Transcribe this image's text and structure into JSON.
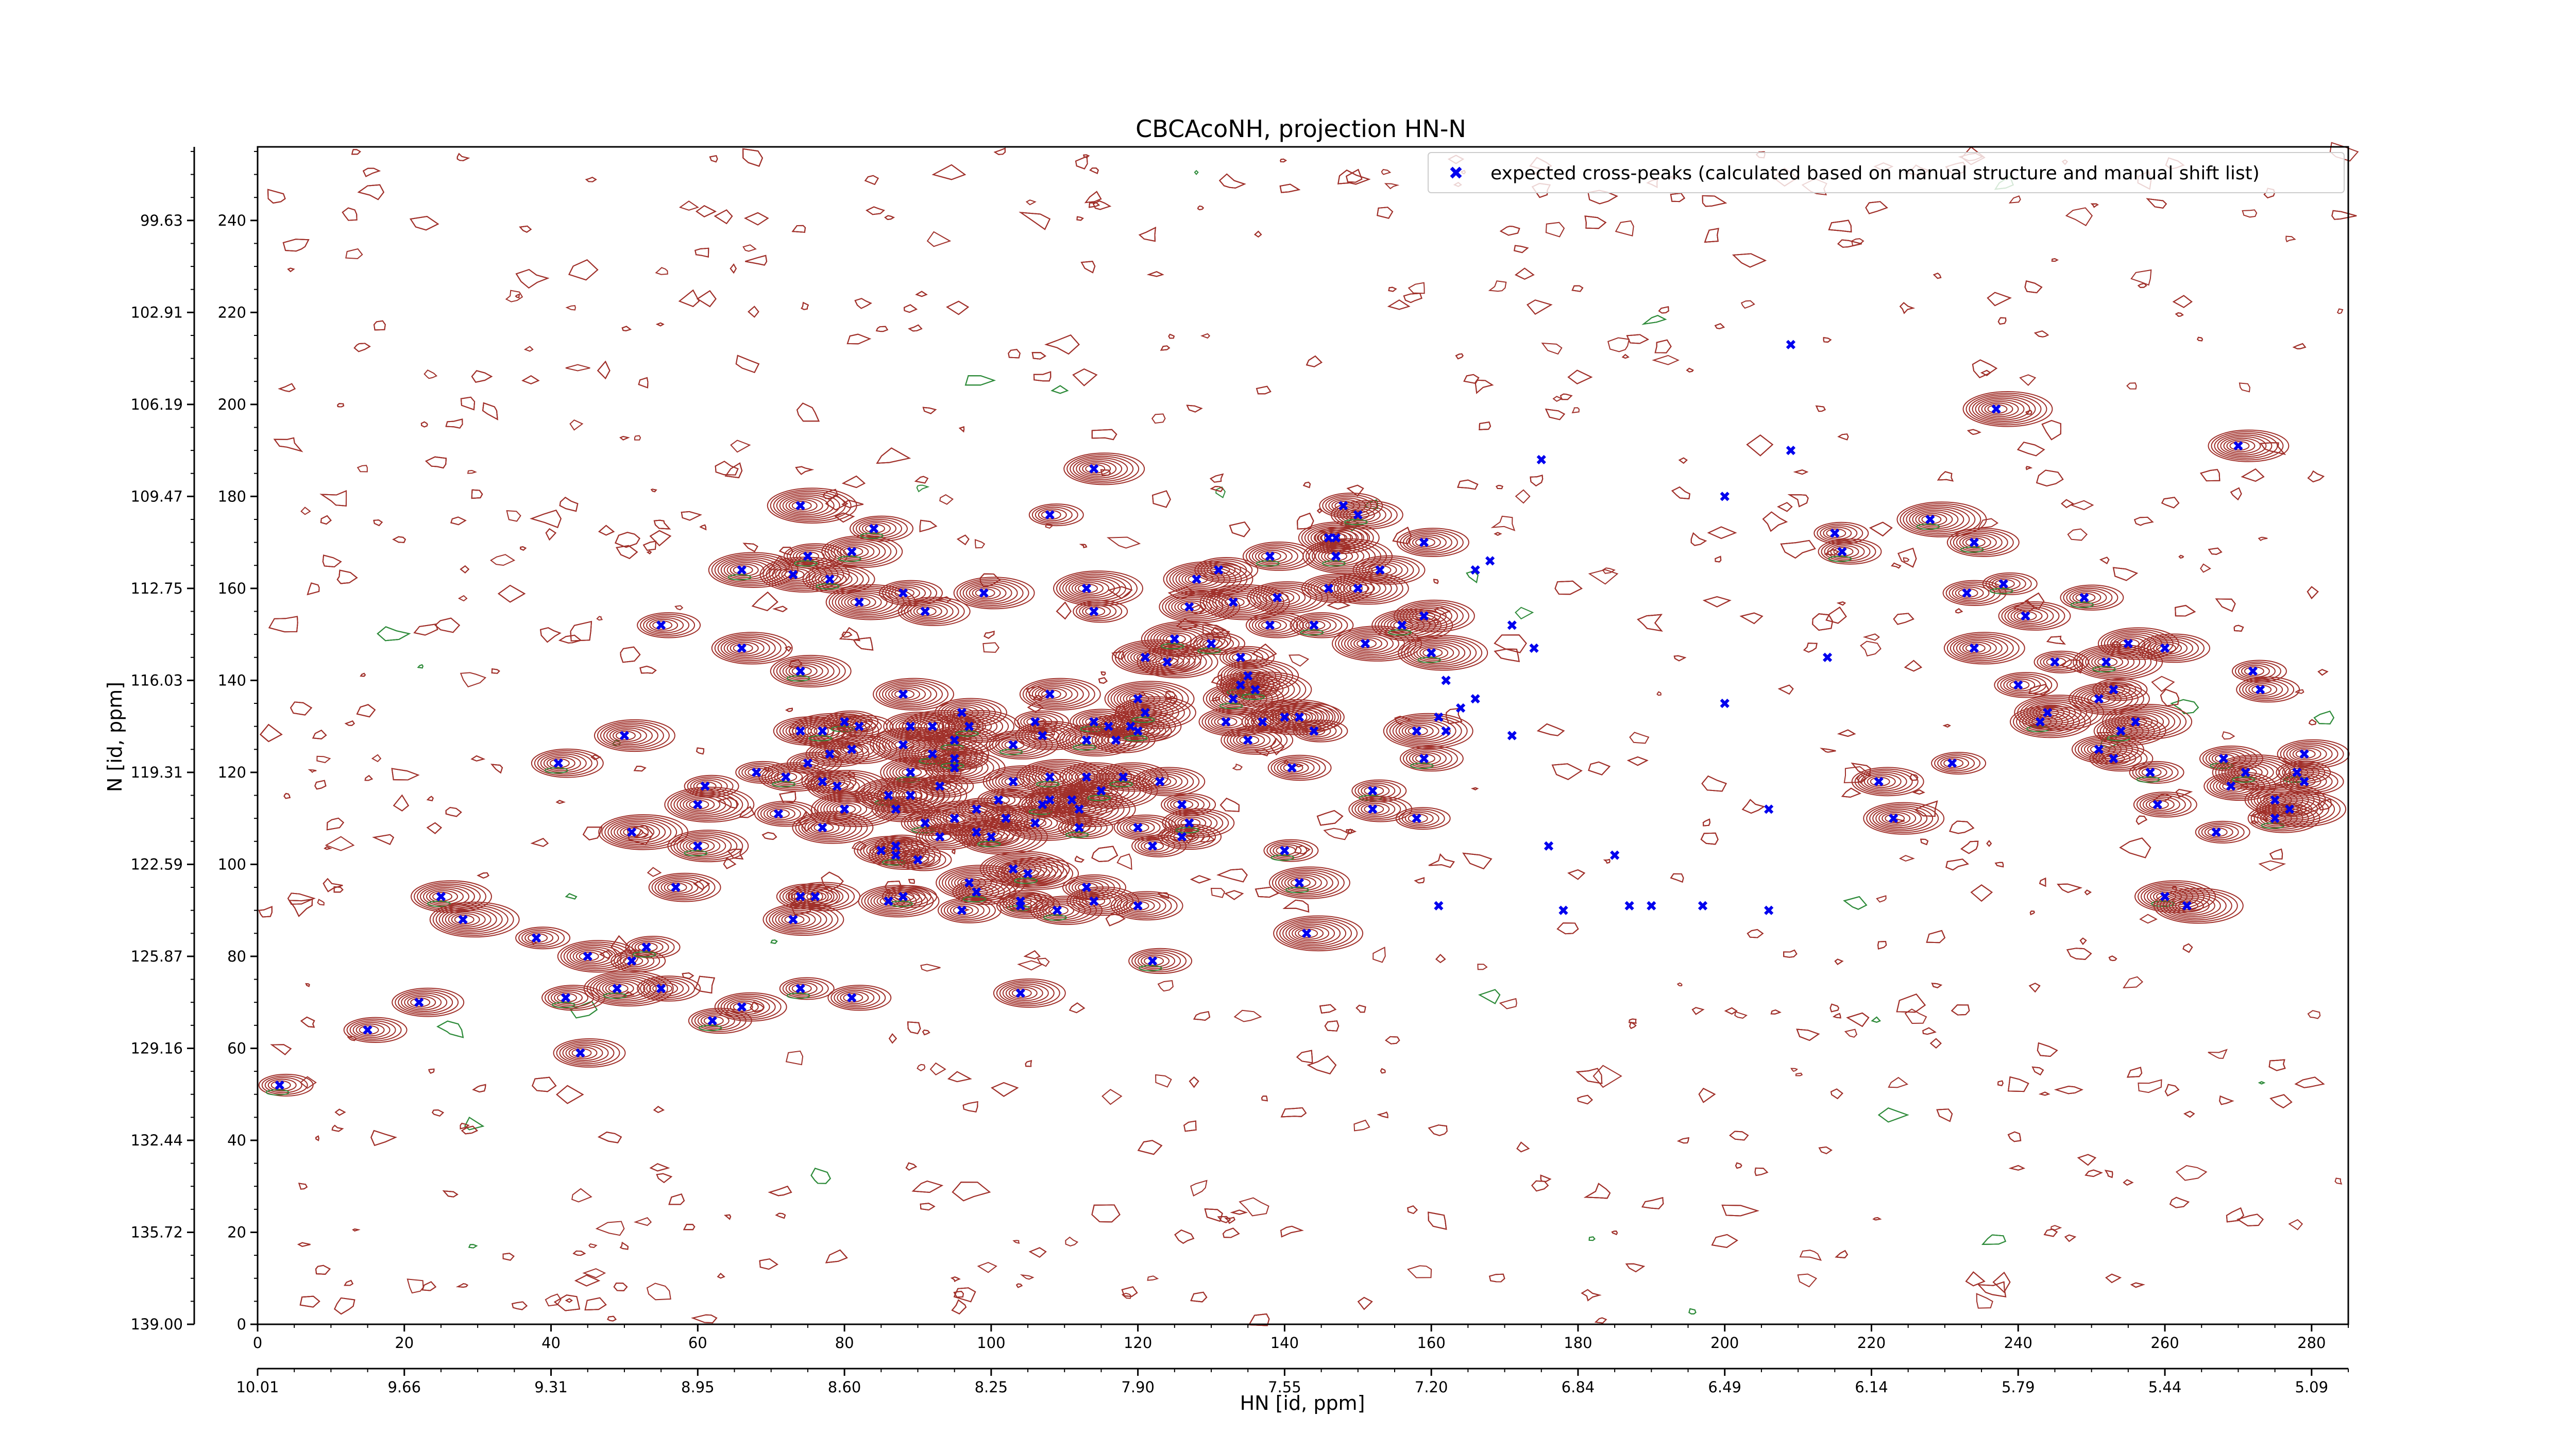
{
  "chart_data": {
    "type": "contour",
    "title": "CBCAcoNH, projection HN-N",
    "xlabel": "HN [id, ppm]",
    "ylabel": "N [id, ppm]",
    "x_index_range": [
      0,
      285
    ],
    "y_index_range": [
      0,
      256
    ],
    "xticks_index": [
      "0",
      "20",
      "40",
      "60",
      "80",
      "100",
      "120",
      "140",
      "160",
      "180",
      "200",
      "220",
      "240",
      "260",
      "280"
    ],
    "yticks_index": [
      "0",
      "20",
      "40",
      "60",
      "80",
      "100",
      "120",
      "140",
      "160",
      "180",
      "200",
      "220",
      "240"
    ],
    "xticks_ppm": [
      "10.01",
      "9.66",
      "9.31",
      "8.95",
      "8.60",
      "8.25",
      "7.90",
      "7.55",
      "7.20",
      "6.84",
      "6.49",
      "6.14",
      "5.79",
      "5.44",
      "5.09"
    ],
    "yticks_ppm": [
      "139.00",
      "135.72",
      "132.44",
      "129.16",
      "125.87",
      "122.59",
      "119.31",
      "116.03",
      "112.75",
      "109.47",
      "106.19",
      "102.91",
      "99.63"
    ],
    "legend": {
      "placement": "top-right",
      "label": "expected cross-peaks (calculated based on manual structure and manual shift list)"
    },
    "colors": {
      "contour_pos": "#a0302a",
      "contour_neg": "#2e8b3a",
      "marker": "#0000ee"
    },
    "series": [
      {
        "name": "expected cross-peaks (calculated based on manual structure and manual shift list)",
        "marker": "x",
        "points": [
          [
            3,
            52
          ],
          [
            15,
            64
          ],
          [
            22,
            70
          ],
          [
            25,
            93
          ],
          [
            28,
            88
          ],
          [
            38,
            84
          ],
          [
            42,
            71
          ],
          [
            44,
            59
          ],
          [
            45,
            80
          ],
          [
            49,
            73
          ],
          [
            51,
            79
          ],
          [
            55,
            73
          ],
          [
            41,
            122
          ],
          [
            50,
            128
          ],
          [
            51,
            107
          ],
          [
            53,
            82
          ],
          [
            55,
            152
          ],
          [
            57,
            95
          ],
          [
            60,
            104
          ],
          [
            60,
            113
          ],
          [
            61,
            117
          ],
          [
            62,
            66
          ],
          [
            66,
            69
          ],
          [
            66,
            147
          ],
          [
            66,
            164
          ],
          [
            68,
            120
          ],
          [
            71,
            111
          ],
          [
            72,
            119
          ],
          [
            73,
            88
          ],
          [
            73,
            163
          ],
          [
            74,
            73
          ],
          [
            74,
            93
          ],
          [
            74,
            129
          ],
          [
            74,
            142
          ],
          [
            74,
            178
          ],
          [
            75,
            122
          ],
          [
            75,
            167
          ],
          [
            76,
            93
          ],
          [
            77,
            108
          ],
          [
            77,
            129
          ],
          [
            77,
            118
          ],
          [
            78,
            124
          ],
          [
            78,
            162
          ],
          [
            79,
            117
          ],
          [
            80,
            112
          ],
          [
            80,
            131
          ],
          [
            81,
            71
          ],
          [
            81,
            125
          ],
          [
            81,
            168
          ],
          [
            82,
            157
          ],
          [
            82,
            130
          ],
          [
            84,
            173
          ],
          [
            85,
            103
          ],
          [
            86,
            92
          ],
          [
            86,
            115
          ],
          [
            87,
            104
          ],
          [
            87,
            112
          ],
          [
            87,
            102
          ],
          [
            88,
            137
          ],
          [
            88,
            126
          ],
          [
            88,
            93
          ],
          [
            88,
            159
          ],
          [
            89,
            130
          ],
          [
            89,
            120
          ],
          [
            89,
            115
          ],
          [
            90,
            101
          ],
          [
            91,
            109
          ],
          [
            91,
            155
          ],
          [
            92,
            130
          ],
          [
            92,
            124
          ],
          [
            93,
            117
          ],
          [
            93,
            106
          ],
          [
            95,
            127
          ],
          [
            95,
            121
          ],
          [
            95,
            110
          ],
          [
            95,
            123
          ],
          [
            96,
            90
          ],
          [
            96,
            133
          ],
          [
            97,
            130
          ],
          [
            97,
            96
          ],
          [
            98,
            112
          ],
          [
            98,
            94
          ],
          [
            98,
            107
          ],
          [
            99,
            159
          ],
          [
            100,
            106
          ],
          [
            101,
            114
          ],
          [
            102,
            110
          ],
          [
            103,
            126
          ],
          [
            103,
            118
          ],
          [
            103,
            99
          ],
          [
            104,
            92
          ],
          [
            104,
            91
          ],
          [
            104,
            72
          ],
          [
            105,
            98
          ],
          [
            106,
            109
          ],
          [
            106,
            131
          ],
          [
            107,
            113
          ],
          [
            107,
            128
          ],
          [
            108,
            137
          ],
          [
            108,
            119
          ],
          [
            108,
            176
          ],
          [
            108,
            114
          ],
          [
            109,
            90
          ],
          [
            111,
            114
          ],
          [
            112,
            112
          ],
          [
            112,
            108
          ],
          [
            113,
            95
          ],
          [
            113,
            119
          ],
          [
            113,
            127
          ],
          [
            113,
            160
          ],
          [
            114,
            155
          ],
          [
            114,
            131
          ],
          [
            114,
            92
          ],
          [
            114,
            186
          ],
          [
            115,
            116
          ],
          [
            116,
            130
          ],
          [
            117,
            127
          ],
          [
            118,
            119
          ],
          [
            119,
            130
          ],
          [
            120,
            136
          ],
          [
            120,
            129
          ],
          [
            120,
            108
          ],
          [
            120,
            91
          ],
          [
            121,
            133
          ],
          [
            121,
            145
          ],
          [
            122,
            104
          ],
          [
            122,
            79
          ],
          [
            123,
            118
          ],
          [
            124,
            144
          ],
          [
            125,
            149
          ],
          [
            126,
            113
          ],
          [
            126,
            106
          ],
          [
            127,
            109
          ],
          [
            127,
            156
          ],
          [
            128,
            162
          ],
          [
            130,
            148
          ],
          [
            131,
            164
          ],
          [
            132,
            131
          ],
          [
            133,
            136
          ],
          [
            133,
            157
          ],
          [
            134,
            145
          ],
          [
            134,
            139
          ],
          [
            135,
            127
          ],
          [
            135,
            141
          ],
          [
            136,
            138
          ],
          [
            137,
            131
          ],
          [
            138,
            152
          ],
          [
            138,
            167
          ],
          [
            139,
            158
          ],
          [
            140,
            132
          ],
          [
            140,
            103
          ],
          [
            141,
            121
          ],
          [
            142,
            132
          ],
          [
            142,
            96
          ],
          [
            143,
            85
          ],
          [
            144,
            129
          ],
          [
            144,
            152
          ],
          [
            146,
            160
          ],
          [
            146,
            171
          ],
          [
            147,
            167
          ],
          [
            147,
            171
          ],
          [
            148,
            178
          ],
          [
            150,
            176
          ],
          [
            150,
            160
          ],
          [
            151,
            148
          ],
          [
            152,
            116
          ],
          [
            152,
            112
          ],
          [
            153,
            164
          ],
          [
            156,
            152
          ],
          [
            158,
            129
          ],
          [
            158,
            110
          ],
          [
            159,
            123
          ],
          [
            159,
            170
          ],
          [
            159,
            154
          ],
          [
            160,
            146
          ],
          [
            161,
            91
          ],
          [
            161,
            132
          ],
          [
            162,
            129
          ],
          [
            162,
            140
          ],
          [
            164,
            134
          ],
          [
            166,
            164
          ],
          [
            166,
            136
          ],
          [
            168,
            166
          ],
          [
            171,
            152
          ],
          [
            171,
            128
          ],
          [
            174,
            147
          ],
          [
            175,
            188
          ],
          [
            176,
            104
          ],
          [
            178,
            90
          ],
          [
            185,
            102
          ],
          [
            187,
            91
          ],
          [
            190,
            91
          ],
          [
            197,
            91
          ],
          [
            200,
            135
          ],
          [
            200,
            180
          ],
          [
            206,
            112
          ],
          [
            206,
            90
          ],
          [
            209,
            190
          ],
          [
            209,
            213
          ],
          [
            214,
            145
          ],
          [
            215,
            172
          ],
          [
            216,
            168
          ],
          [
            221,
            118
          ],
          [
            223,
            110
          ],
          [
            228,
            175
          ],
          [
            231,
            122
          ],
          [
            233,
            159
          ],
          [
            234,
            170
          ],
          [
            234,
            147
          ],
          [
            237,
            199
          ],
          [
            238,
            161
          ],
          [
            240,
            139
          ],
          [
            241,
            154
          ],
          [
            243,
            131
          ],
          [
            244,
            133
          ],
          [
            245,
            144
          ],
          [
            249,
            158
          ],
          [
            251,
            125
          ],
          [
            251,
            136
          ],
          [
            252,
            144
          ],
          [
            253,
            138
          ],
          [
            253,
            123
          ],
          [
            254,
            129
          ],
          [
            255,
            148
          ],
          [
            256,
            131
          ],
          [
            258,
            120
          ],
          [
            259,
            113
          ],
          [
            260,
            147
          ],
          [
            260,
            93
          ],
          [
            263,
            91
          ],
          [
            267,
            107
          ],
          [
            268,
            123
          ],
          [
            269,
            117
          ],
          [
            270,
            191
          ],
          [
            271,
            120
          ],
          [
            272,
            142
          ],
          [
            273,
            138
          ],
          [
            275,
            110
          ],
          [
            275,
            114
          ],
          [
            277,
            112
          ],
          [
            278,
            120
          ],
          [
            279,
            118
          ],
          [
            279,
            124
          ]
        ]
      }
    ]
  }
}
